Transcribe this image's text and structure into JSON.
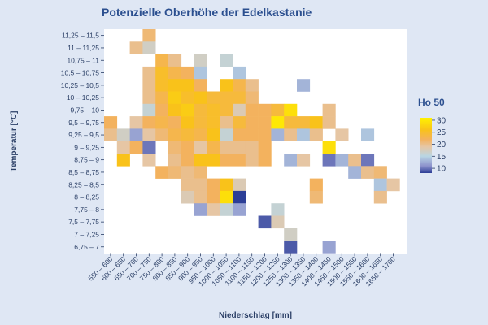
{
  "chart_data": {
    "type": "heatmap",
    "title": "Potenzielle Oberhöhe der Edelkastanie",
    "xlabel": "Niederschlag [mm]",
    "ylabel": "Temperatur [°C]",
    "x_categories": [
      "550 – 600",
      "600 – 650",
      "650 – 700",
      "700 – 750",
      "750 – 800",
      "800 – 850",
      "850 – 900",
      "900 – 950",
      "950 – 1000",
      "1000 – 1050",
      "1050 – 1100",
      "1100 – 1150",
      "1150 – 1200",
      "1200 – 1250",
      "1250 – 1300",
      "1300 – 1350",
      "1350 – 1400",
      "1400 – 1450",
      "1450 – 1500",
      "1500 – 1550",
      "1550 – 1600",
      "1600 – 1650",
      "1650 – 1700"
    ],
    "y_categories": [
      "11,25 – 11,5",
      "11 – 11,25",
      "10,75 – 11",
      "10,5 – 10,75",
      "10,25 – 10,5",
      "10 – 10,25",
      "9,75 – 10",
      "9,5 – 9,75",
      "9,25 – 9,5",
      "9 – 9,25",
      "8,75 – 9",
      "8,5 – 8,75",
      "8,25 – 8,5",
      "8 – 8,25",
      "7,75 – 8",
      "7,5 – 7,75",
      "7 – 7,25",
      "6,75 – 7"
    ],
    "color_scale": {
      "title": "Ho 50",
      "min": 8,
      "max": 31,
      "ticks": [
        10,
        15,
        20,
        25,
        30
      ],
      "stops": [
        {
          "value": 8,
          "color": "#2c3e96"
        },
        {
          "value": 11,
          "color": "#8d92cc"
        },
        {
          "value": 15,
          "color": "#b9d6e4"
        },
        {
          "value": 19,
          "color": "#e6c6a4"
        },
        {
          "value": 22,
          "color": "#f3b25e"
        },
        {
          "value": 26,
          "color": "#f9c21a"
        },
        {
          "value": 31,
          "color": "#fff200"
        }
      ]
    },
    "cells": [
      [
        3,
        0,
        21
      ],
      [
        2,
        1,
        20
      ],
      [
        3,
        1,
        17
      ],
      [
        4,
        2,
        23
      ],
      [
        5,
        2,
        20
      ],
      [
        7,
        2,
        17
      ],
      [
        9,
        2,
        16
      ],
      [
        3,
        3,
        20
      ],
      [
        4,
        3,
        25
      ],
      [
        5,
        3,
        23
      ],
      [
        6,
        3,
        22
      ],
      [
        7,
        3,
        14
      ],
      [
        10,
        3,
        14
      ],
      [
        3,
        4,
        20
      ],
      [
        4,
        4,
        25
      ],
      [
        5,
        4,
        26
      ],
      [
        6,
        4,
        26
      ],
      [
        7,
        4,
        22
      ],
      [
        9,
        4,
        26
      ],
      [
        10,
        4,
        23
      ],
      [
        11,
        4,
        20
      ],
      [
        15,
        4,
        13
      ],
      [
        3,
        5,
        20
      ],
      [
        4,
        5,
        23
      ],
      [
        5,
        5,
        27
      ],
      [
        6,
        5,
        25
      ],
      [
        7,
        5,
        26
      ],
      [
        8,
        5,
        24
      ],
      [
        9,
        5,
        24
      ],
      [
        10,
        5,
        24
      ],
      [
        11,
        5,
        21
      ],
      [
        3,
        6,
        16
      ],
      [
        4,
        6,
        22
      ],
      [
        5,
        6,
        26
      ],
      [
        6,
        6,
        27
      ],
      [
        7,
        6,
        24
      ],
      [
        8,
        6,
        25
      ],
      [
        9,
        6,
        24
      ],
      [
        10,
        6,
        18
      ],
      [
        11,
        6,
        22
      ],
      [
        12,
        6,
        22
      ],
      [
        13,
        6,
        24
      ],
      [
        14,
        6,
        29
      ],
      [
        17,
        6,
        20
      ],
      [
        0,
        7,
        22
      ],
      [
        2,
        7,
        19
      ],
      [
        3,
        7,
        22
      ],
      [
        4,
        7,
        23
      ],
      [
        5,
        7,
        22
      ],
      [
        6,
        7,
        26
      ],
      [
        7,
        7,
        24
      ],
      [
        8,
        7,
        25
      ],
      [
        9,
        7,
        20
      ],
      [
        10,
        7,
        24
      ],
      [
        11,
        7,
        22
      ],
      [
        12,
        7,
        22
      ],
      [
        13,
        7,
        30
      ],
      [
        14,
        7,
        24
      ],
      [
        15,
        7,
        24
      ],
      [
        16,
        7,
        26
      ],
      [
        17,
        7,
        20
      ],
      [
        0,
        8,
        20
      ],
      [
        1,
        8,
        17
      ],
      [
        2,
        8,
        12
      ],
      [
        3,
        8,
        19
      ],
      [
        4,
        8,
        21
      ],
      [
        5,
        8,
        23
      ],
      [
        6,
        8,
        24
      ],
      [
        7,
        8,
        23
      ],
      [
        8,
        8,
        26
      ],
      [
        9,
        8,
        16
      ],
      [
        10,
        8,
        22
      ],
      [
        11,
        8,
        22
      ],
      [
        12,
        8,
        22
      ],
      [
        13,
        8,
        13
      ],
      [
        14,
        8,
        20
      ],
      [
        15,
        8,
        14
      ],
      [
        16,
        8,
        20
      ],
      [
        18,
        8,
        19
      ],
      [
        20,
        8,
        14
      ],
      [
        1,
        9,
        19
      ],
      [
        2,
        9,
        22
      ],
      [
        3,
        9,
        10
      ],
      [
        5,
        9,
        21
      ],
      [
        6,
        9,
        22
      ],
      [
        7,
        9,
        19
      ],
      [
        8,
        9,
        23
      ],
      [
        9,
        9,
        20
      ],
      [
        10,
        9,
        20
      ],
      [
        11,
        9,
        20
      ],
      [
        12,
        9,
        22
      ],
      [
        17,
        9,
        29
      ],
      [
        1,
        10,
        26
      ],
      [
        3,
        10,
        19
      ],
      [
        5,
        10,
        20
      ],
      [
        6,
        10,
        22
      ],
      [
        7,
        10,
        26
      ],
      [
        8,
        10,
        26
      ],
      [
        9,
        10,
        22
      ],
      [
        10,
        10,
        22
      ],
      [
        11,
        10,
        20
      ],
      [
        12,
        10,
        22
      ],
      [
        14,
        10,
        13
      ],
      [
        15,
        10,
        19
      ],
      [
        17,
        10,
        10
      ],
      [
        18,
        10,
        13
      ],
      [
        19,
        10,
        20
      ],
      [
        20,
        10,
        10
      ],
      [
        4,
        11,
        22
      ],
      [
        5,
        11,
        21
      ],
      [
        6,
        11,
        20
      ],
      [
        7,
        11,
        21
      ],
      [
        19,
        11,
        13
      ],
      [
        20,
        11,
        20
      ],
      [
        21,
        11,
        21
      ],
      [
        6,
        12,
        20
      ],
      [
        7,
        12,
        20
      ],
      [
        8,
        12,
        22
      ],
      [
        9,
        12,
        26
      ],
      [
        10,
        12,
        18
      ],
      [
        16,
        12,
        22
      ],
      [
        21,
        12,
        14
      ],
      [
        22,
        12,
        19
      ],
      [
        6,
        13,
        18
      ],
      [
        7,
        13,
        20
      ],
      [
        8,
        13,
        22
      ],
      [
        9,
        13,
        29
      ],
      [
        10,
        13,
        8
      ],
      [
        16,
        13,
        21
      ],
      [
        21,
        13,
        20
      ],
      [
        7,
        14,
        12
      ],
      [
        8,
        14,
        19
      ],
      [
        9,
        14,
        16
      ],
      [
        10,
        14,
        12
      ],
      [
        13,
        14,
        16
      ],
      [
        12,
        15,
        9
      ],
      [
        13,
        15,
        18
      ],
      [
        14,
        16,
        17
      ],
      [
        14,
        17,
        9
      ],
      [
        17,
        17,
        12
      ]
    ]
  }
}
